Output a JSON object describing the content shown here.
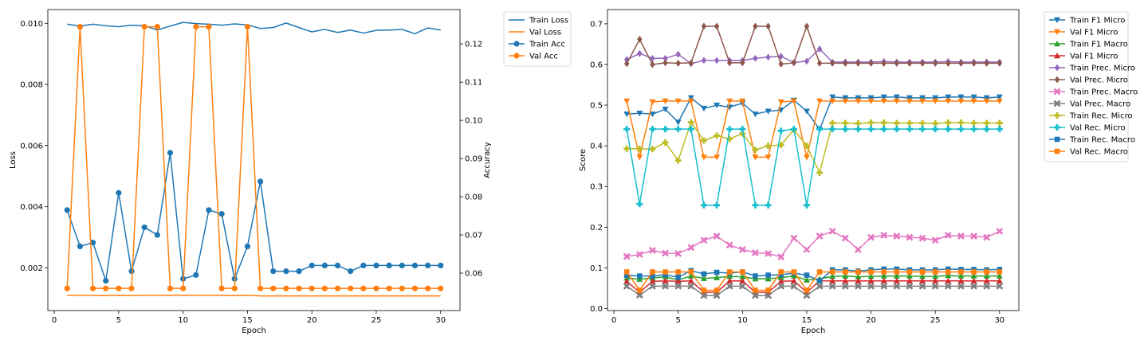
{
  "chart_data": [
    {
      "type": "line",
      "title": "",
      "xlabel": "Epoch",
      "ylabel": "Loss",
      "y2label": "Accuracy",
      "xlim": [
        -0.5,
        31.5
      ],
      "ylim": [
        0.0006,
        0.01045
      ],
      "y2lim": [
        0.0502,
        0.129
      ],
      "xticks": [
        0,
        5,
        10,
        15,
        20,
        25,
        30
      ],
      "yticks": [
        0.002,
        0.004,
        0.006,
        0.008,
        0.01
      ],
      "yticklabels": [
        "0.002",
        "0.004",
        "0.006",
        "0.008",
        "0.010"
      ],
      "y2ticks": [
        0.06,
        0.07,
        0.08,
        0.09,
        0.1,
        0.11,
        0.12
      ],
      "y2ticklabels": [
        "0.06",
        "0.07",
        "0.08",
        "0.09",
        "0.10",
        "0.11",
        "0.12"
      ],
      "legend_position": "outside-right",
      "x": [
        1,
        2,
        3,
        4,
        5,
        6,
        7,
        8,
        9,
        10,
        11,
        12,
        13,
        14,
        15,
        16,
        17,
        18,
        19,
        20,
        21,
        22,
        23,
        24,
        25,
        26,
        27,
        28,
        29,
        30
      ],
      "series": [
        {
          "name": "Train Loss",
          "axis": "left",
          "color": "#1f77b4",
          "marker": "none",
          "values": [
            0.00997,
            0.00991,
            0.00997,
            0.00992,
            0.00989,
            0.00994,
            0.00992,
            0.00978,
            0.00991,
            0.01003,
            0.00999,
            0.00997,
            0.00994,
            0.00998,
            0.00995,
            0.00983,
            0.00986,
            0.01001,
            0.00986,
            0.00972,
            0.0098,
            0.0097,
            0.00978,
            0.00968,
            0.00977,
            0.00978,
            0.0098,
            0.00966,
            0.00985,
            0.00978
          ]
        },
        {
          "name": "Val Loss",
          "axis": "left",
          "color": "#ff7f0e",
          "marker": "none",
          "values": [
            0.0011,
            0.0011,
            0.0011,
            0.00109,
            0.0011,
            0.00109,
            0.0011,
            0.0011,
            0.0011,
            0.0011,
            0.0011,
            0.0011,
            0.0011,
            0.00109,
            0.0011,
            0.00108,
            0.00108,
            0.00108,
            0.00108,
            0.00108,
            0.00108,
            0.00108,
            0.00108,
            0.00108,
            0.00108,
            0.00108,
            0.00108,
            0.00108,
            0.00108,
            0.00108
          ]
        },
        {
          "name": "Train Acc",
          "axis": "right",
          "color": "#1f77b4",
          "marker": "circle",
          "values": [
            0.0765,
            0.067,
            0.068,
            0.058,
            0.081,
            0.0605,
            0.072,
            0.07,
            0.0915,
            0.0585,
            0.0595,
            0.0765,
            0.0755,
            0.0585,
            0.067,
            0.084,
            0.0605,
            0.0605,
            0.0605,
            0.062,
            0.062,
            0.062,
            0.0605,
            0.062,
            0.062,
            0.062,
            0.062,
            0.062,
            0.062,
            0.062
          ]
        },
        {
          "name": "Val Acc",
          "axis": "right",
          "color": "#ff7f0e",
          "marker": "circle",
          "values": [
            0.056,
            0.1245,
            0.056,
            0.056,
            0.056,
            0.056,
            0.1245,
            0.1245,
            0.056,
            0.056,
            0.1245,
            0.1245,
            0.056,
            0.056,
            0.1245,
            0.056,
            0.056,
            0.056,
            0.056,
            0.056,
            0.056,
            0.056,
            0.056,
            0.056,
            0.056,
            0.056,
            0.056,
            0.056,
            0.056,
            0.056
          ]
        }
      ]
    },
    {
      "type": "line",
      "title": "",
      "xlabel": "Epoch",
      "ylabel": "Score",
      "xlim": [
        -0.5,
        31.5
      ],
      "ylim": [
        -0.005,
        0.735
      ],
      "xticks": [
        0,
        5,
        10,
        15,
        20,
        25,
        30
      ],
      "yticks": [
        0.0,
        0.1,
        0.2,
        0.3,
        0.4,
        0.5,
        0.6,
        0.7
      ],
      "yticklabels": [
        "0.0",
        "0.1",
        "0.2",
        "0.3",
        "0.4",
        "0.5",
        "0.6",
        "0.7"
      ],
      "legend_position": "outside-right",
      "x": [
        1,
        2,
        3,
        4,
        5,
        6,
        7,
        8,
        9,
        10,
        11,
        12,
        13,
        14,
        15,
        16,
        17,
        18,
        19,
        20,
        21,
        22,
        23,
        24,
        25,
        26,
        27,
        28,
        29,
        30
      ],
      "series": [
        {
          "name": "Train F1 Micro",
          "color": "#1f77b4",
          "marker": "triangle-down",
          "values": [
            0.478,
            0.48,
            0.478,
            0.49,
            0.458,
            0.518,
            0.492,
            0.5,
            0.495,
            0.505,
            0.478,
            0.485,
            0.488,
            0.512,
            0.485,
            0.44,
            0.52,
            0.518,
            0.518,
            0.518,
            0.52,
            0.52,
            0.518,
            0.518,
            0.518,
            0.52,
            0.52,
            0.52,
            0.518,
            0.52
          ]
        },
        {
          "name": "Val F1 Micro",
          "color": "#ff7f0e",
          "marker": "triangle-down",
          "values": [
            0.51,
            0.372,
            0.508,
            0.51,
            0.51,
            0.51,
            0.372,
            0.372,
            0.51,
            0.51,
            0.372,
            0.372,
            0.508,
            0.51,
            0.372,
            0.51,
            0.51,
            0.51,
            0.51,
            0.51,
            0.51,
            0.51,
            0.51,
            0.51,
            0.51,
            0.51,
            0.51,
            0.51,
            0.51,
            0.51
          ]
        },
        {
          "name": "Train F1 Macro",
          "color": "#2ca02c",
          "marker": "triangle-up",
          "values": [
            0.075,
            0.072,
            0.075,
            0.078,
            0.07,
            0.08,
            0.074,
            0.076,
            0.079,
            0.078,
            0.073,
            0.073,
            0.076,
            0.08,
            0.07,
            0.073,
            0.079,
            0.08,
            0.078,
            0.079,
            0.08,
            0.08,
            0.08,
            0.079,
            0.079,
            0.081,
            0.08,
            0.08,
            0.08,
            0.08
          ]
        },
        {
          "name": "Val F1 Micro",
          "color": "#d62728",
          "marker": "triangle-up",
          "values": [
            0.067,
            0.04,
            0.067,
            0.068,
            0.067,
            0.068,
            0.04,
            0.04,
            0.068,
            0.068,
            0.04,
            0.04,
            0.067,
            0.068,
            0.04,
            0.068,
            0.068,
            0.068,
            0.068,
            0.068,
            0.068,
            0.068,
            0.068,
            0.068,
            0.068,
            0.068,
            0.068,
            0.068,
            0.068,
            0.068
          ]
        },
        {
          "name": "Train Prec. Micro",
          "color": "#9467bd",
          "marker": "diamond",
          "values": [
            0.612,
            0.627,
            0.615,
            0.615,
            0.625,
            0.602,
            0.61,
            0.61,
            0.61,
            0.61,
            0.615,
            0.618,
            0.62,
            0.605,
            0.608,
            0.638,
            0.606,
            0.606,
            0.606,
            0.606,
            0.607,
            0.606,
            0.606,
            0.606,
            0.606,
            0.607,
            0.606,
            0.606,
            0.606,
            0.606
          ]
        },
        {
          "name": "Val Prec. Micro",
          "color": "#8c564b",
          "marker": "diamond",
          "values": [
            0.602,
            0.662,
            0.6,
            0.604,
            0.603,
            0.604,
            0.694,
            0.694,
            0.604,
            0.604,
            0.694,
            0.694,
            0.601,
            0.604,
            0.694,
            0.603,
            0.603,
            0.603,
            0.603,
            0.603,
            0.603,
            0.603,
            0.603,
            0.603,
            0.603,
            0.603,
            0.603,
            0.603,
            0.603,
            0.603
          ]
        },
        {
          "name": "Train Prec. Macro",
          "color": "#e377c2",
          "marker": "x",
          "values": [
            0.128,
            0.133,
            0.143,
            0.136,
            0.135,
            0.15,
            0.168,
            0.178,
            0.156,
            0.145,
            0.137,
            0.135,
            0.127,
            0.173,
            0.145,
            0.178,
            0.19,
            0.173,
            0.145,
            0.175,
            0.18,
            0.178,
            0.175,
            0.173,
            0.168,
            0.18,
            0.178,
            0.178,
            0.175,
            0.19
          ]
        },
        {
          "name": "Val Prec. Macro",
          "color": "#7f7f7f",
          "marker": "x",
          "values": [
            0.055,
            0.033,
            0.055,
            0.055,
            0.055,
            0.055,
            0.032,
            0.032,
            0.055,
            0.055,
            0.032,
            0.032,
            0.055,
            0.055,
            0.032,
            0.055,
            0.055,
            0.055,
            0.055,
            0.055,
            0.055,
            0.055,
            0.055,
            0.055,
            0.055,
            0.055,
            0.055,
            0.055,
            0.055,
            0.055
          ]
        },
        {
          "name": "Train Rec. Micro",
          "color": "#bcbd22",
          "marker": "plus",
          "values": [
            0.393,
            0.393,
            0.392,
            0.408,
            0.364,
            0.458,
            0.413,
            0.425,
            0.417,
            0.43,
            0.39,
            0.4,
            0.402,
            0.44,
            0.4,
            0.334,
            0.456,
            0.456,
            0.455,
            0.457,
            0.457,
            0.456,
            0.456,
            0.456,
            0.455,
            0.457,
            0.457,
            0.456,
            0.456,
            0.456
          ]
        },
        {
          "name": "Val Rec. Micro",
          "color": "#17becf",
          "marker": "plus",
          "values": [
            0.441,
            0.257,
            0.441,
            0.441,
            0.441,
            0.441,
            0.254,
            0.254,
            0.441,
            0.441,
            0.254,
            0.254,
            0.437,
            0.441,
            0.254,
            0.441,
            0.441,
            0.441,
            0.441,
            0.441,
            0.441,
            0.441,
            0.441,
            0.441,
            0.441,
            0.441,
            0.441,
            0.441,
            0.441,
            0.441
          ]
        },
        {
          "name": "Train Rec. Macro",
          "color": "#1f77b4",
          "marker": "square",
          "values": [
            0.082,
            0.08,
            0.08,
            0.083,
            0.077,
            0.093,
            0.085,
            0.089,
            0.087,
            0.09,
            0.08,
            0.082,
            0.083,
            0.087,
            0.082,
            0.068,
            0.095,
            0.095,
            0.092,
            0.095,
            0.097,
            0.097,
            0.095,
            0.095,
            0.095,
            0.097,
            0.096,
            0.096,
            0.095,
            0.096
          ]
        },
        {
          "name": "Val Rec. Macro",
          "color": "#ff7f0e",
          "marker": "square",
          "values": [
            0.09,
            0.045,
            0.09,
            0.09,
            0.09,
            0.09,
            0.045,
            0.045,
            0.09,
            0.09,
            0.045,
            0.045,
            0.09,
            0.09,
            0.045,
            0.09,
            0.09,
            0.09,
            0.09,
            0.09,
            0.09,
            0.09,
            0.09,
            0.09,
            0.09,
            0.09,
            0.09,
            0.09,
            0.09,
            0.09
          ]
        }
      ]
    }
  ]
}
